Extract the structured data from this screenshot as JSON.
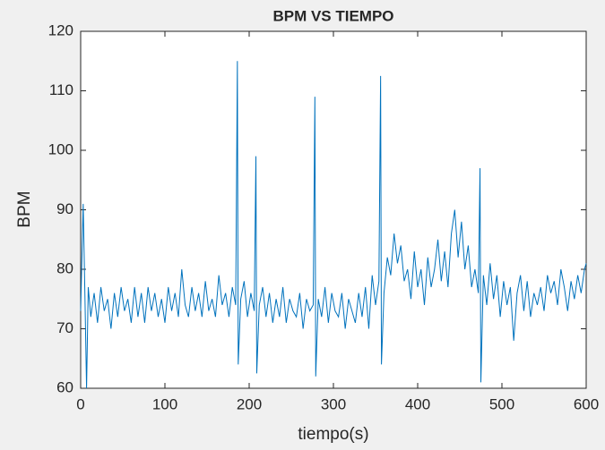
{
  "chart_data": {
    "type": "line",
    "title": "BPM VS TIEMPO",
    "x_label": "tiempo(s)",
    "y_label": "BPM",
    "xlim": [
      0,
      600
    ],
    "xticks": [
      0,
      100,
      200,
      300,
      400,
      500,
      600
    ],
    "ylim": [
      60,
      120
    ],
    "yticks": [
      60,
      70,
      80,
      90,
      100,
      110,
      120
    ],
    "grid": false,
    "series": [
      {
        "color": "#0072bd",
        "x": [
          0,
          3,
          5,
          7,
          9,
          12,
          16,
          20,
          24,
          28,
          32,
          36,
          40,
          44,
          48,
          52,
          56,
          60,
          64,
          68,
          72,
          76,
          80,
          84,
          88,
          92,
          96,
          100,
          104,
          108,
          112,
          116,
          120,
          124,
          128,
          132,
          136,
          140,
          144,
          148,
          152,
          156,
          160,
          164,
          168,
          172,
          176,
          180,
          184,
          186,
          187,
          190,
          194,
          198,
          202,
          206,
          208,
          209,
          212,
          216,
          220,
          224,
          228,
          232,
          236,
          240,
          244,
          248,
          252,
          256,
          260,
          264,
          268,
          272,
          276,
          278,
          279,
          282,
          286,
          290,
          294,
          298,
          302,
          306,
          310,
          314,
          318,
          322,
          326,
          330,
          334,
          338,
          342,
          346,
          350,
          354,
          356,
          357,
          360,
          364,
          368,
          372,
          376,
          380,
          384,
          388,
          392,
          396,
          400,
          404,
          408,
          412,
          416,
          420,
          424,
          428,
          432,
          436,
          440,
          444,
          448,
          452,
          456,
          460,
          464,
          468,
          472,
          474,
          475,
          478,
          482,
          486,
          490,
          494,
          498,
          502,
          506,
          510,
          514,
          518,
          522,
          526,
          530,
          534,
          538,
          542,
          546,
          550,
          554,
          558,
          562,
          566,
          570,
          574,
          578,
          582,
          586,
          590,
          594,
          598,
          600
        ],
        "values": [
          73,
          91,
          76,
          60,
          77,
          72,
          76,
          71,
          77,
          73,
          75,
          70,
          76,
          72,
          77,
          73,
          75,
          71,
          77,
          72,
          76,
          71,
          77,
          73,
          76,
          72,
          75,
          71,
          77,
          73,
          76,
          72,
          80,
          74,
          72,
          77,
          73,
          76,
          72,
          78,
          73,
          75,
          72,
          79,
          74,
          76,
          72,
          77,
          74,
          115,
          64,
          75,
          78,
          72,
          76,
          73,
          99,
          62.5,
          74,
          77,
          72,
          76,
          71,
          75,
          72,
          77,
          71,
          75,
          73,
          72,
          76,
          70,
          75,
          73,
          74,
          109,
          62,
          75,
          72,
          77,
          71,
          76,
          73,
          72,
          76,
          70,
          75,
          73,
          71,
          76,
          72,
          77,
          70,
          79,
          74,
          78,
          112.5,
          64,
          76,
          82,
          79,
          86,
          81,
          84,
          78,
          80,
          75,
          83,
          77,
          80,
          74,
          82,
          77,
          80,
          85,
          78,
          83,
          77,
          86,
          90,
          82,
          88,
          80,
          84,
          77,
          80,
          76,
          97,
          61,
          79,
          74,
          81,
          75,
          79,
          72,
          78,
          74,
          77,
          68,
          76,
          79,
          73,
          78,
          72,
          76,
          74,
          77,
          73,
          79,
          76,
          78,
          74,
          80,
          77,
          73,
          78,
          75,
          79,
          76,
          80,
          81
        ]
      }
    ]
  }
}
